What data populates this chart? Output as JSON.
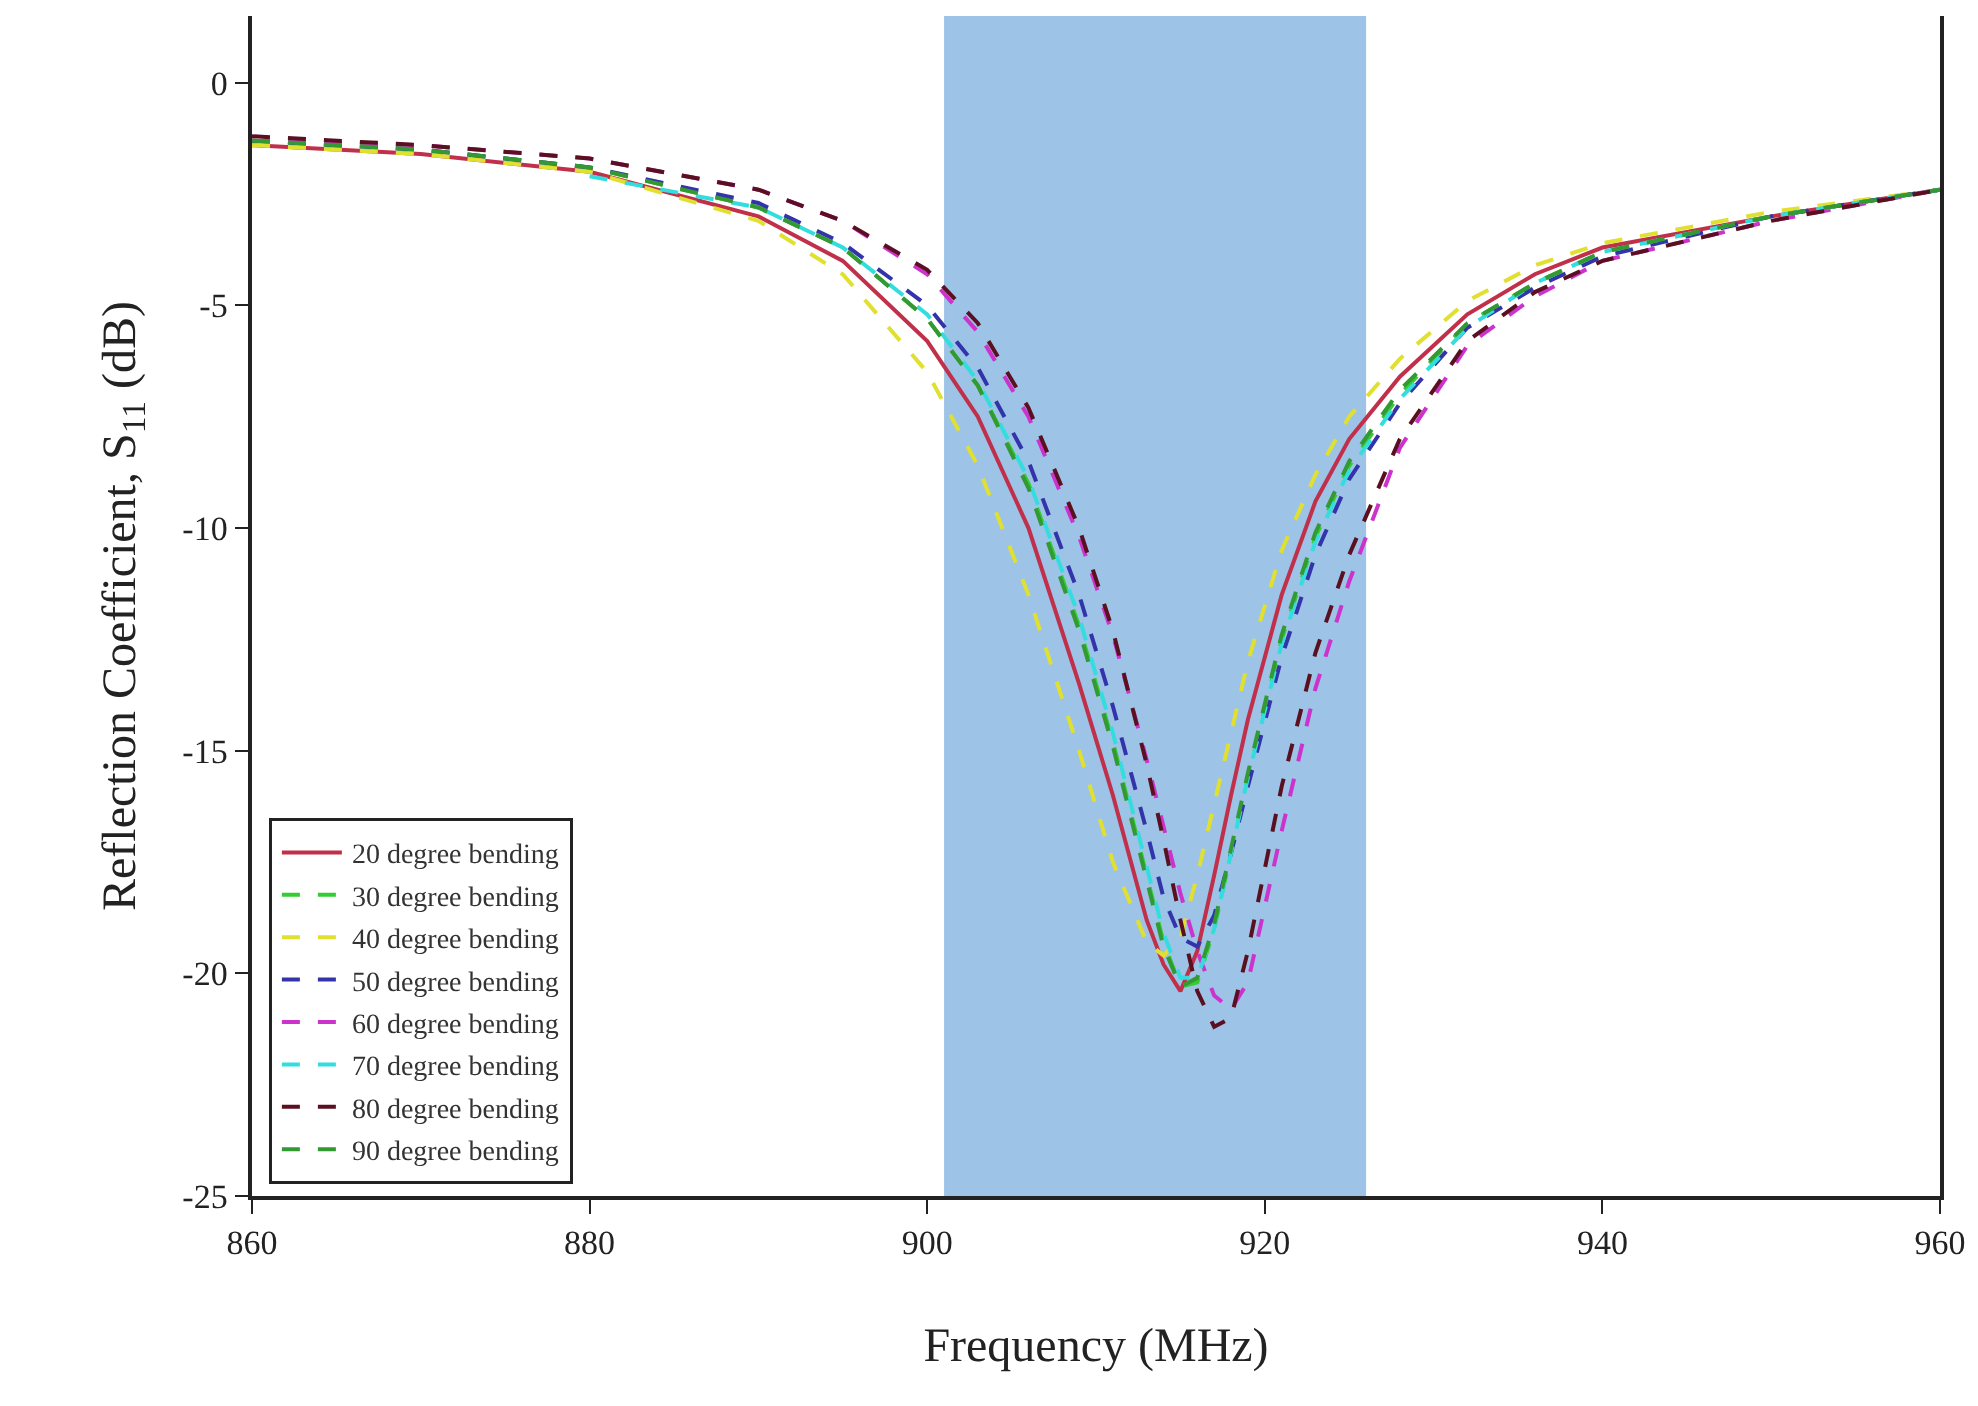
{
  "chart_data": {
    "type": "line",
    "xlabel": "Frequency (MHz)",
    "ylabel": "Reflection Coefficient, S$_{11}$ (dB)",
    "x": [
      860,
      870,
      880,
      890,
      895,
      900,
      903,
      906,
      909,
      911,
      913,
      914,
      915,
      916,
      917,
      918,
      919,
      921,
      923,
      925,
      928,
      932,
      936,
      940,
      950,
      960
    ],
    "series": [
      {
        "name": "20 degree bending",
        "color": "#c0304a",
        "line_style": "solid",
        "values": [
          -1.4,
          -1.6,
          -2.0,
          -3.0,
          -4.0,
          -5.8,
          -7.5,
          -10,
          -13.5,
          -16,
          -18.8,
          -19.8,
          -20.4,
          -19.5,
          -17.8,
          -16.0,
          -14.3,
          -11.5,
          -9.4,
          -8.0,
          -6.6,
          -5.2,
          -4.3,
          -3.7,
          -3.0,
          -2.4
        ]
      },
      {
        "name": "30 degree bending",
        "color": "#33cc33",
        "line_style": "dashed",
        "values": [
          -1.3,
          -1.5,
          -1.9,
          -2.8,
          -3.7,
          -5.3,
          -6.8,
          -9.0,
          -12.2,
          -14.8,
          -17.8,
          -19.3,
          -20.3,
          -20.2,
          -19,
          -17.3,
          -15.6,
          -12.5,
          -10.2,
          -8.6,
          -7.0,
          -5.4,
          -4.5,
          -3.8,
          -3.0,
          -2.4
        ]
      },
      {
        "name": "40 degree bending",
        "color": "#e0e030",
        "line_style": "dashed",
        "values": [
          -1.4,
          -1.6,
          -2.0,
          -3.1,
          -4.3,
          -6.5,
          -8.6,
          -11.5,
          -15,
          -17.5,
          -19.3,
          -19.6,
          -19.2,
          -17.8,
          -16.2,
          -14.6,
          -13,
          -10.5,
          -8.8,
          -7.5,
          -6.2,
          -4.9,
          -4.1,
          -3.6,
          -2.9,
          -2.4
        ]
      },
      {
        "name": "50 degree bending",
        "color": "#3333aa",
        "line_style": "dashed",
        "values": [
          -1.3,
          -1.5,
          -1.9,
          -2.7,
          -3.6,
          -5.0,
          -6.4,
          -8.5,
          -11.5,
          -14,
          -16.8,
          -18.3,
          -19.2,
          -19.4,
          -18.7,
          -17.3,
          -15.8,
          -12.9,
          -10.6,
          -8.9,
          -7.2,
          -5.5,
          -4.6,
          -3.9,
          -3.0,
          -2.4
        ]
      },
      {
        "name": "60 degree bending",
        "color": "#cc33cc",
        "line_style": "dashed",
        "values": [
          -1.3,
          -1.4,
          -1.7,
          -2.4,
          -3.1,
          -4.3,
          -5.6,
          -7.5,
          -10.2,
          -12.4,
          -15.2,
          -16.7,
          -18.2,
          -19.5,
          -20.5,
          -20.8,
          -20.2,
          -16.8,
          -13.6,
          -11.2,
          -8.2,
          -5.9,
          -4.8,
          -4.0,
          -3.1,
          -2.4
        ]
      },
      {
        "name": "70 degree bending",
        "color": "#33dddd",
        "line_style": "dashed",
        "values": [
          null,
          null,
          -2.1,
          -2.8,
          -3.7,
          -5.2,
          -6.7,
          -8.9,
          -12,
          -14.6,
          -17.6,
          -19.1,
          -20.1,
          -20.1,
          -19.0,
          -17.3,
          -15.6,
          -12.6,
          -10.3,
          -8.7,
          -7.1,
          -5.5,
          -4.5,
          -3.8,
          -3.0,
          -2.4
        ]
      },
      {
        "name": "80 degree bending",
        "color": "#5a1020",
        "line_style": "dashed",
        "values": [
          -1.2,
          -1.4,
          -1.7,
          -2.4,
          -3.1,
          -4.2,
          -5.4,
          -7.3,
          -10,
          -12.3,
          -15.3,
          -17,
          -18.8,
          -20.4,
          -21.2,
          -21.0,
          -19.5,
          -15.8,
          -12.8,
          -10.6,
          -8.0,
          -5.8,
          -4.7,
          -4.0,
          -3.1,
          -2.4
        ]
      },
      {
        "name": "90 degree bending",
        "color": "#339933",
        "line_style": "dashed",
        "values": [
          -1.3,
          -1.5,
          -1.9,
          -2.8,
          -3.7,
          -5.3,
          -6.8,
          -9.1,
          -12.3,
          -14.9,
          -17.9,
          -19.4,
          -20.3,
          -20.1,
          -18.9,
          -17.2,
          -15.5,
          -12.4,
          -10.1,
          -8.5,
          -6.9,
          -5.4,
          -4.5,
          -3.8,
          -3.0,
          -2.4
        ]
      }
    ],
    "bands": [
      {
        "axis": "x",
        "from": 901,
        "to": 926,
        "color": "#9dc3e6"
      }
    ],
    "xlim": [
      860,
      960
    ],
    "xticks": [
      860,
      880,
      900,
      920,
      940,
      960
    ],
    "ylim": [
      -25,
      1.5
    ],
    "yticks": [
      -25,
      -20,
      -15,
      -10,
      -5,
      0
    ],
    "grid": false,
    "legend": "bottom left",
    "marker": "none"
  }
}
